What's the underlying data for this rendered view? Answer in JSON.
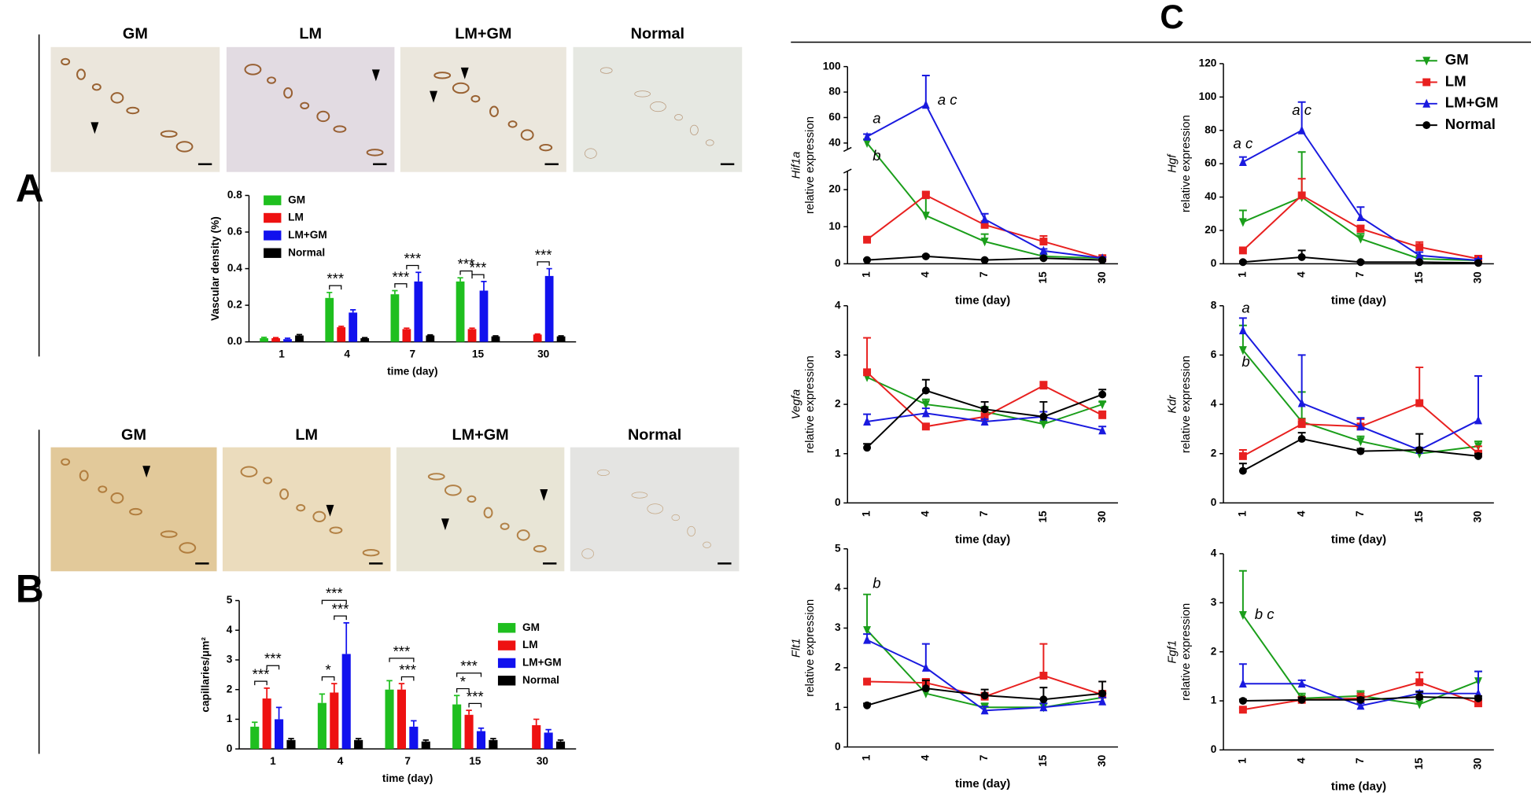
{
  "panel_labels": [
    "A",
    "B",
    "C"
  ],
  "images_a": [
    "GM",
    "LM",
    "LM+GM",
    "Normal"
  ],
  "images_b": [
    "GM",
    "LM",
    "LM+GM",
    "Normal"
  ],
  "chart_data": [
    {
      "type": "bar",
      "ylabel": "Vascular density (%)",
      "xlabel": "time (day)",
      "categories": [
        "1",
        "4",
        "7",
        "15",
        "30"
      ],
      "ylim": [
        0,
        0.8
      ],
      "yticks": [
        {
          "value": 0,
          "label": "0.0"
        },
        0.2,
        0.4,
        0.6,
        0.8
      ],
      "legend": "top-left",
      "series": [
        {
          "name": "GM",
          "color": "#1fbf1f",
          "values": [
            0.02,
            0.24,
            0.26,
            0.33,
            null
          ],
          "errors": [
            0.005,
            0.03,
            0.02,
            0.02,
            null
          ]
        },
        {
          "name": "LM",
          "color": "#ee1111",
          "values": [
            0.02,
            0.08,
            0.07,
            0.07,
            0.04
          ],
          "errors": [
            0.003,
            0.005,
            0.005,
            0.005,
            0.003
          ]
        },
        {
          "name": "LM+GM",
          "color": "#1111ee",
          "values": [
            0.015,
            0.16,
            0.33,
            0.28,
            0.36
          ],
          "errors": [
            0.005,
            0.015,
            0.05,
            0.05,
            0.04
          ]
        },
        {
          "name": "Normal",
          "color": "#000000",
          "values": [
            0.035,
            0.02,
            0.035,
            0.03,
            0.03
          ],
          "errors": [
            0.005,
            0.003,
            0.003,
            0.003,
            0.003
          ]
        }
      ],
      "annotations": [
        "***",
        "***",
        "***",
        "***",
        "***",
        "***"
      ]
    },
    {
      "type": "bar",
      "ylabel": "capillaries/μm²",
      "xlabel": "time (day)",
      "categories": [
        "1",
        "4",
        "7",
        "15",
        "30"
      ],
      "ylim": [
        0,
        5
      ],
      "yticks": [
        0,
        1,
        2,
        3,
        4,
        5
      ],
      "legend": "right",
      "series": [
        {
          "name": "GM",
          "color": "#1fbf1f",
          "values": [
            0.75,
            1.55,
            2.0,
            1.5,
            null
          ],
          "errors": [
            0.15,
            0.3,
            0.3,
            0.3,
            null
          ]
        },
        {
          "name": "LM",
          "color": "#ee1111",
          "values": [
            1.7,
            1.9,
            2.0,
            1.15,
            0.8
          ],
          "errors": [
            0.35,
            0.3,
            0.2,
            0.15,
            0.2
          ]
        },
        {
          "name": "LM+GM",
          "color": "#1111ee",
          "values": [
            1.0,
            3.2,
            0.75,
            0.6,
            0.55
          ],
          "errors": [
            0.4,
            1.05,
            0.2,
            0.1,
            0.1
          ]
        },
        {
          "name": "Normal",
          "color": "#000000",
          "values": [
            0.3,
            0.3,
            0.25,
            0.3,
            0.25
          ],
          "errors": [
            0.05,
            0.05,
            0.05,
            0.05,
            0.05
          ]
        }
      ],
      "annotations": [
        "***",
        "***",
        "*",
        "***",
        "***",
        "***",
        "***",
        "***",
        "*",
        "***"
      ]
    },
    {
      "type": "line",
      "ylabel": "Hif1a",
      "ylabel2": "relative expression",
      "xlabel": "time (day)",
      "categories": [
        "1",
        "4",
        "7",
        "15",
        "30"
      ],
      "ylim": [
        0,
        100
      ],
      "ybreak": [
        25,
        35
      ],
      "yticks": [
        0,
        10,
        20,
        40,
        60,
        80,
        100
      ],
      "series": [
        {
          "name": "GM",
          "color": "#1a9e1a",
          "marker": "triangle-down",
          "values": [
            40,
            13,
            6,
            2,
            1.5
          ],
          "errors": [
            3,
            6,
            2,
            0.5,
            0.3
          ]
        },
        {
          "name": "LM",
          "color": "#e8201f",
          "marker": "square",
          "values": [
            6.5,
            18.5,
            10.5,
            6,
            1.5
          ],
          "errors": [
            0.5,
            1,
            1,
            1.5,
            0.3
          ]
        },
        {
          "name": "LM+GM",
          "color": "#1a1adf",
          "marker": "triangle-up",
          "values": [
            45,
            70,
            12,
            3.5,
            1.5
          ],
          "errors": [
            2,
            23,
            1.5,
            0.5,
            0.3
          ]
        },
        {
          "name": "Normal",
          "color": "#000000",
          "marker": "circle",
          "values": [
            1,
            2,
            1,
            1.5,
            1
          ],
          "errors": [
            0.2,
            0.3,
            0.2,
            0.2,
            0.2
          ]
        }
      ],
      "annotations": [
        "a",
        "a c",
        "b"
      ]
    },
    {
      "type": "line",
      "ylabel": "Hgf",
      "ylabel2": "relative expression",
      "xlabel": "time (day)",
      "categories": [
        "1",
        "4",
        "7",
        "15",
        "30"
      ],
      "ylim": [
        0,
        120
      ],
      "yticks": [
        0,
        20,
        40,
        60,
        80,
        100,
        120
      ],
      "legend": "top-right",
      "series": [
        {
          "name": "GM",
          "color": "#1a9e1a",
          "marker": "triangle-down",
          "values": [
            25,
            40,
            15,
            3,
            2
          ],
          "errors": [
            7,
            27,
            3,
            1,
            1
          ]
        },
        {
          "name": "LM",
          "color": "#e8201f",
          "marker": "square",
          "values": [
            8,
            41,
            21,
            10,
            3
          ],
          "errors": [
            1,
            10,
            2,
            3,
            1
          ]
        },
        {
          "name": "LM+GM",
          "color": "#1a1adf",
          "marker": "triangle-up",
          "values": [
            61,
            80,
            28,
            5,
            2
          ],
          "errors": [
            3,
            17,
            6,
            2,
            1
          ]
        },
        {
          "name": "Normal",
          "color": "#000000",
          "marker": "circle",
          "values": [
            1,
            4,
            1,
            1,
            0.5
          ],
          "errors": [
            0.5,
            4,
            0.5,
            0.5,
            0.5
          ]
        }
      ],
      "annotations": [
        "a c",
        "a c"
      ]
    },
    {
      "type": "line",
      "ylabel": "Vegfa",
      "ylabel2": "relative expression",
      "xlabel": "time (day)",
      "categories": [
        "1",
        "4",
        "7",
        "15",
        "30"
      ],
      "ylim": [
        0,
        4
      ],
      "yticks": [
        0,
        1,
        2,
        3,
        4
      ],
      "series": [
        {
          "name": "GM",
          "color": "#1a9e1a",
          "marker": "triangle-down",
          "values": [
            2.55,
            2.0,
            1.85,
            1.6,
            2.0
          ],
          "errors": [
            0.1,
            0.1,
            0.1,
            0.05,
            0.05
          ]
        },
        {
          "name": "LM",
          "color": "#e8201f",
          "marker": "square",
          "values": [
            2.65,
            1.55,
            1.75,
            2.38,
            1.78
          ],
          "errors": [
            0.7,
            0.05,
            0.1,
            0.08,
            0.08
          ]
        },
        {
          "name": "LM+GM",
          "color": "#1a1adf",
          "marker": "triangle-up",
          "values": [
            1.65,
            1.82,
            1.65,
            1.75,
            1.47
          ],
          "errors": [
            0.15,
            0.1,
            0.05,
            0.1,
            0.08
          ]
        },
        {
          "name": "Normal",
          "color": "#000000",
          "marker": "circle",
          "values": [
            1.12,
            2.28,
            1.9,
            1.75,
            2.2
          ],
          "errors": [
            0.08,
            0.22,
            0.15,
            0.3,
            0.1
          ]
        }
      ],
      "annotations": []
    },
    {
      "type": "line",
      "ylabel": "Kdr",
      "ylabel2": "relative expression",
      "xlabel": "time (day)",
      "categories": [
        "1",
        "4",
        "7",
        "15",
        "30"
      ],
      "ylim": [
        0,
        8
      ],
      "yticks": [
        0,
        2,
        4,
        6,
        8
      ],
      "series": [
        {
          "name": "GM",
          "color": "#1a9e1a",
          "marker": "triangle-down",
          "values": [
            6.2,
            3.3,
            2.5,
            2.0,
            2.3
          ],
          "errors": [
            1.0,
            1.2,
            0.2,
            0.2,
            0.2
          ]
        },
        {
          "name": "LM",
          "color": "#e8201f",
          "marker": "square",
          "values": [
            1.9,
            3.2,
            3.1,
            4.05,
            2.0
          ],
          "errors": [
            0.25,
            0.2,
            0.3,
            1.45,
            0.3
          ]
        },
        {
          "name": "LM+GM",
          "color": "#1a1adf",
          "marker": "triangle-up",
          "values": [
            7.0,
            4.05,
            3.1,
            2.15,
            3.35
          ],
          "errors": [
            0.5,
            1.95,
            0.35,
            0.1,
            1.8
          ]
        },
        {
          "name": "Normal",
          "color": "#000000",
          "marker": "circle",
          "values": [
            1.3,
            2.6,
            2.1,
            2.15,
            1.9
          ],
          "errors": [
            0.3,
            0.25,
            0.1,
            0.65,
            0.1
          ]
        }
      ],
      "annotations": [
        "a",
        "b"
      ]
    },
    {
      "type": "line",
      "ylabel": "Flt1",
      "ylabel2": "relative expression",
      "xlabel": "time (day)",
      "categories": [
        "1",
        "4",
        "7",
        "15",
        "30"
      ],
      "ylim": [
        0,
        5
      ],
      "yticks": [
        0,
        1,
        2,
        3,
        4,
        5
      ],
      "series": [
        {
          "name": "GM",
          "color": "#1a9e1a",
          "marker": "triangle-down",
          "values": [
            2.95,
            1.35,
            1.0,
            1.0,
            1.25
          ],
          "errors": [
            0.9,
            0.1,
            0.1,
            0.1,
            0.1
          ]
        },
        {
          "name": "LM",
          "color": "#e8201f",
          "marker": "square",
          "values": [
            1.65,
            1.62,
            1.27,
            1.8,
            1.32
          ],
          "errors": [
            0.05,
            0.1,
            0.1,
            0.8,
            0.1
          ]
        },
        {
          "name": "LM+GM",
          "color": "#1a1adf",
          "marker": "triangle-up",
          "values": [
            2.7,
            2.0,
            0.92,
            1.0,
            1.15
          ],
          "errors": [
            0.15,
            0.6,
            0.1,
            0.1,
            0.1
          ]
        },
        {
          "name": "Normal",
          "color": "#000000",
          "marker": "circle",
          "values": [
            1.05,
            1.48,
            1.3,
            1.2,
            1.35
          ],
          "errors": [
            0.05,
            0.2,
            0.15,
            0.3,
            0.3
          ]
        }
      ],
      "annotations": [
        "b"
      ]
    },
    {
      "type": "line",
      "ylabel": "Fgf1",
      "ylabel2": "relative expression",
      "xlabel": "time (day)",
      "categories": [
        "1",
        "4",
        "7",
        "15",
        "30"
      ],
      "ylim": [
        0,
        4
      ],
      "yticks": [
        0,
        1,
        2,
        3,
        4
      ],
      "series": [
        {
          "name": "GM",
          "color": "#1a9e1a",
          "marker": "triangle-down",
          "values": [
            2.75,
            1.05,
            1.1,
            0.93,
            1.4
          ],
          "errors": [
            0.9,
            0.1,
            0.1,
            0.1,
            0.2
          ]
        },
        {
          "name": "LM",
          "color": "#e8201f",
          "marker": "square",
          "values": [
            0.82,
            1.02,
            1.05,
            1.38,
            0.95
          ],
          "errors": [
            0.03,
            0.05,
            0.1,
            0.2,
            0.05
          ]
        },
        {
          "name": "LM+GM",
          "color": "#1a1adf",
          "marker": "triangle-up",
          "values": [
            1.35,
            1.35,
            0.9,
            1.15,
            1.15
          ],
          "errors": [
            0.4,
            0.07,
            0.05,
            0.05,
            0.45
          ]
        },
        {
          "name": "Normal",
          "color": "#000000",
          "marker": "circle",
          "values": [
            1.0,
            1.02,
            1.02,
            1.08,
            1.05
          ],
          "errors": [
            0.03,
            0.05,
            0.05,
            0.1,
            0.05
          ]
        }
      ],
      "annotations": [
        "b c"
      ]
    }
  ]
}
